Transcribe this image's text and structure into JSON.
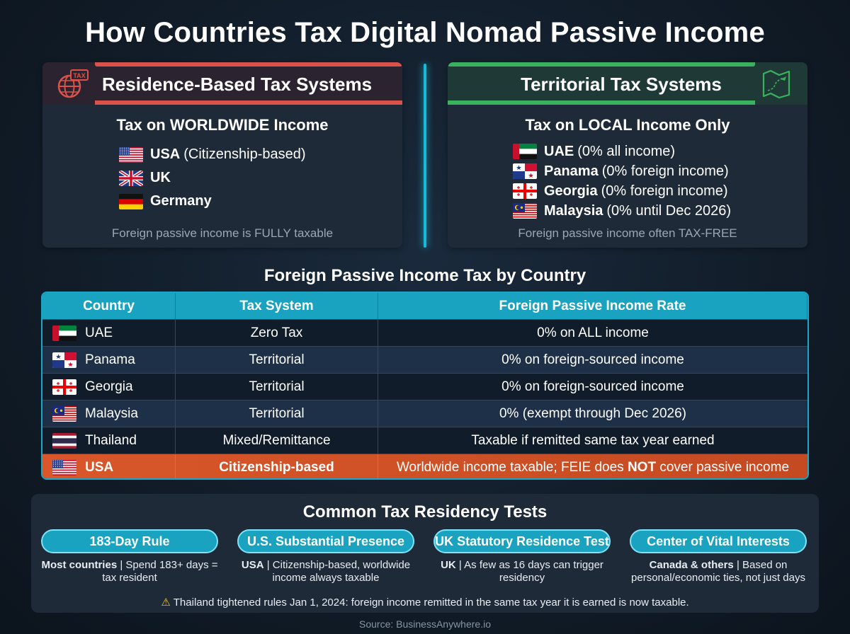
{
  "title": "How Countries Tax Digital Nomad Passive Income",
  "residence_panel": {
    "title": "Residence-Based Tax Systems",
    "subtitle": "Tax on WORLDWIDE Income",
    "icon": "globe-tax-icon",
    "icon_text": "TAX",
    "accent": "#d9534a",
    "countries": [
      {
        "name": "USA",
        "note": "(Citizenship-based)",
        "flag": "us"
      },
      {
        "name": "UK",
        "note": "",
        "flag": "uk"
      },
      {
        "name": "Germany",
        "note": "",
        "flag": "de"
      }
    ],
    "footnote": "Foreign passive income is FULLY taxable"
  },
  "territorial_panel": {
    "title": "Territorial Tax Systems",
    "subtitle": "Tax on LOCAL Income Only",
    "icon": "map-plane-icon",
    "accent": "#3ab25d",
    "countries": [
      {
        "name": "UAE",
        "note": "(0% all income)",
        "flag": "ae"
      },
      {
        "name": "Panama",
        "note": "(0% foreign income)",
        "flag": "pa"
      },
      {
        "name": "Georgia",
        "note": "(0% foreign income)",
        "flag": "ge"
      },
      {
        "name": "Malaysia",
        "note": "(0% until Dec 2026)",
        "flag": "my"
      }
    ],
    "footnote": "Foreign passive income often TAX-FREE"
  },
  "table": {
    "title": "Foreign Passive Income Tax by Country",
    "headers": [
      "Country",
      "Tax System",
      "Foreign Passive Income Rate"
    ],
    "rows": [
      {
        "country": "UAE",
        "flag": "ae",
        "system": "Zero Tax",
        "rate": "0% on ALL income"
      },
      {
        "country": "Panama",
        "flag": "pa",
        "system": "Territorial",
        "rate": "0% on foreign-sourced income"
      },
      {
        "country": "Georgia",
        "flag": "ge",
        "system": "Territorial",
        "rate": "0% on foreign-sourced income"
      },
      {
        "country": "Malaysia",
        "flag": "my",
        "system": "Territorial",
        "rate": "0% (exempt through Dec 2026)"
      },
      {
        "country": "Thailand",
        "flag": "th",
        "system": "Mixed/Remittance",
        "rate": "Taxable if remitted same tax year earned"
      }
    ],
    "highlight_row": {
      "country": "USA",
      "flag": "us",
      "system": "Citizenship-based",
      "rate_before": "Worldwide income taxable; FEIE does",
      "rate_bold": "NOT",
      "rate_after": "cover passive income",
      "color": "#d9572a"
    }
  },
  "residency": {
    "title": "Common Tax Residency Tests",
    "tests": [
      {
        "label": "183-Day Rule",
        "desc_bold": "Most countries",
        "desc": " | Spend 183+ days = tax resident"
      },
      {
        "label": "U.S. Substantial Presence",
        "desc_bold": "USA",
        "desc": " | Citizenship-based, worldwide income always taxable"
      },
      {
        "label": "UK Statutory Residence Test",
        "desc_bold": "UK",
        "desc": " | As few as 16 days can trigger residency"
      },
      {
        "label": "Center of Vital Interests",
        "desc_bold": "Canada & others",
        "desc": " | Based on personal/economic ties, not just days"
      }
    ],
    "warning_icon": "warning-icon",
    "warning_glyph": "⚠",
    "warning": "Thailand tightened rules Jan 1, 2024: foreign income remitted in the same tax year it is earned is now taxable."
  },
  "source": "Source: BusinessAnywhere.io",
  "colors": {
    "cyan": "#1aa3c0",
    "red": "#d9534a",
    "green": "#3ab25d",
    "orange": "#d9572a"
  }
}
